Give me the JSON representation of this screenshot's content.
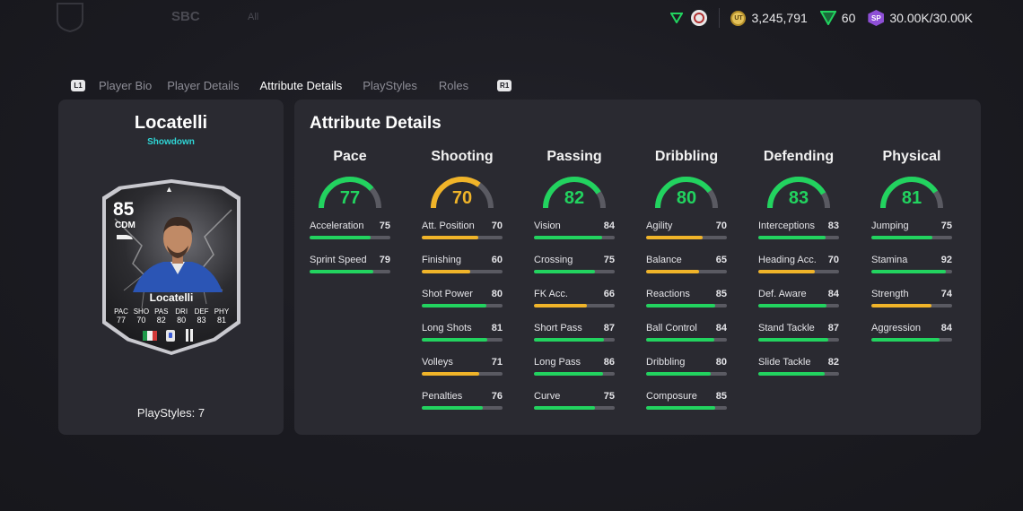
{
  "topbar": {
    "nav_sbc": "SBC",
    "nav_faded_small": "All",
    "coins": "3,245,791",
    "fifa_points": "60",
    "sp": "30.00K/30.00K",
    "sp_label": "SP",
    "coin_label": "UT"
  },
  "tabs": {
    "left_hint": "L1",
    "right_hint": "R1",
    "items": [
      {
        "label": "Player Bio",
        "active": false
      },
      {
        "label": "Player Details",
        "active": false
      },
      {
        "label": "Attribute Details",
        "active": true
      },
      {
        "label": "PlayStyles",
        "active": false
      },
      {
        "label": "Roles",
        "active": false
      }
    ]
  },
  "player": {
    "name": "Locatelli",
    "subtitle": "Showdown",
    "playstyles_text": "PlayStyles: 7",
    "card": {
      "ovr": "85",
      "position": "CDM",
      "name": "Locatelli",
      "stats": [
        {
          "label": "PAC",
          "value": "77"
        },
        {
          "label": "SHO",
          "value": "70"
        },
        {
          "label": "PAS",
          "value": "82"
        },
        {
          "label": "DRI",
          "value": "80"
        },
        {
          "label": "DEF",
          "value": "83"
        },
        {
          "label": "PHY",
          "value": "81"
        }
      ]
    }
  },
  "attributes": {
    "title": "Attribute Details",
    "colors": {
      "green": "#22d35f",
      "yellow": "#f0b429",
      "track": "#5a5a62"
    },
    "categories": [
      {
        "name": "Pace",
        "value": 77,
        "stats": [
          {
            "label": "Acceleration",
            "value": 75
          },
          {
            "label": "Sprint Speed",
            "value": 79
          }
        ]
      },
      {
        "name": "Shooting",
        "value": 70,
        "stats": [
          {
            "label": "Att. Position",
            "value": 70
          },
          {
            "label": "Finishing",
            "value": 60
          },
          {
            "label": "Shot Power",
            "value": 80
          },
          {
            "label": "Long Shots",
            "value": 81
          },
          {
            "label": "Volleys",
            "value": 71
          },
          {
            "label": "Penalties",
            "value": 76
          }
        ]
      },
      {
        "name": "Passing",
        "value": 82,
        "stats": [
          {
            "label": "Vision",
            "value": 84
          },
          {
            "label": "Crossing",
            "value": 75
          },
          {
            "label": "FK Acc.",
            "value": 66
          },
          {
            "label": "Short Pass",
            "value": 87
          },
          {
            "label": "Long Pass",
            "value": 86
          },
          {
            "label": "Curve",
            "value": 75
          }
        ]
      },
      {
        "name": "Dribbling",
        "value": 80,
        "stats": [
          {
            "label": "Agility",
            "value": 70
          },
          {
            "label": "Balance",
            "value": 65
          },
          {
            "label": "Reactions",
            "value": 85
          },
          {
            "label": "Ball Control",
            "value": 84
          },
          {
            "label": "Dribbling",
            "value": 80
          },
          {
            "label": "Composure",
            "value": 85
          }
        ]
      },
      {
        "name": "Defending",
        "value": 83,
        "stats": [
          {
            "label": "Interceptions",
            "value": 83
          },
          {
            "label": "Heading Acc.",
            "value": 70
          },
          {
            "label": "Def. Aware",
            "value": 84
          },
          {
            "label": "Stand Tackle",
            "value": 87
          },
          {
            "label": "Slide Tackle",
            "value": 82
          }
        ]
      },
      {
        "name": "Physical",
        "value": 81,
        "stats": [
          {
            "label": "Jumping",
            "value": 75
          },
          {
            "label": "Stamina",
            "value": 92
          },
          {
            "label": "Strength",
            "value": 74
          },
          {
            "label": "Aggression",
            "value": 84
          }
        ]
      }
    ]
  }
}
